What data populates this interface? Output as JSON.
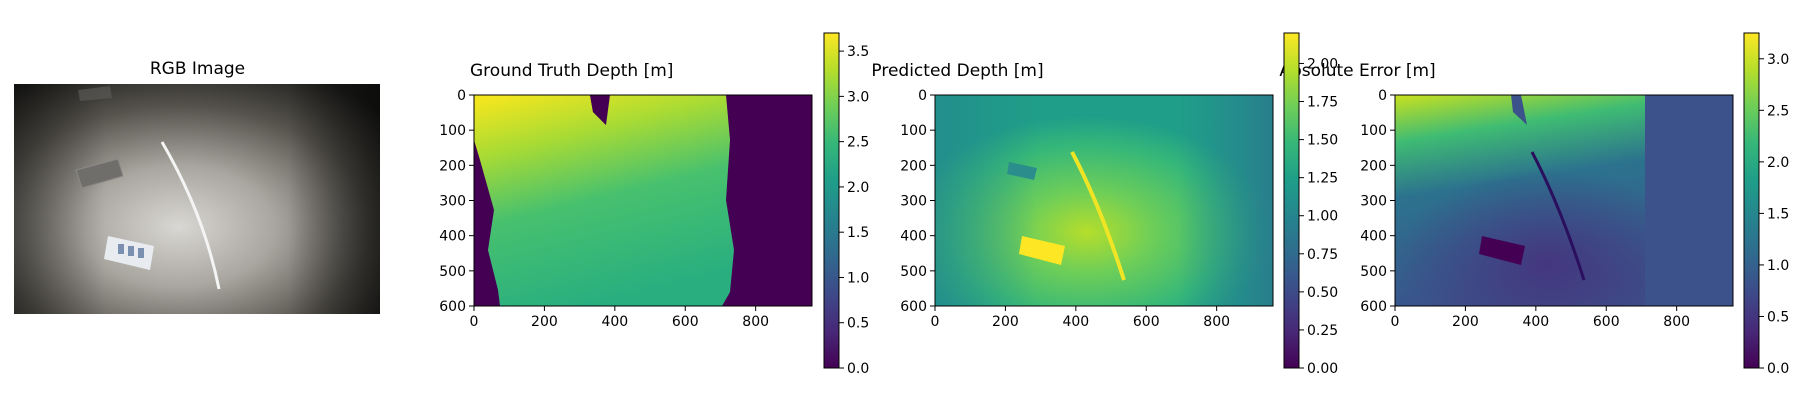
{
  "chart_data": [
    {
      "type": "image",
      "title": "RGB Image"
    },
    {
      "type": "heatmap",
      "title": "Ground Truth Depth [m]",
      "x_ticks": [
        "0",
        "200",
        "400",
        "600",
        "800"
      ],
      "y_ticks": [
        "0",
        "100",
        "200",
        "300",
        "400",
        "500",
        "600"
      ],
      "xlim": [
        0,
        960
      ],
      "ylim": [
        0,
        600
      ],
      "colorbar": {
        "range": [
          0,
          3.7
        ],
        "ticks": [
          "0.0",
          "0.5",
          "1.0",
          "1.5",
          "2.0",
          "2.5",
          "3.0",
          "3.5"
        ],
        "tick_values": [
          0,
          0.5,
          1.0,
          1.5,
          2.0,
          2.5,
          3.0,
          3.5
        ]
      }
    },
    {
      "type": "heatmap",
      "title": "Predicted Depth [m]",
      "x_ticks": [
        "0",
        "200",
        "400",
        "600",
        "800"
      ],
      "y_ticks": [
        "0",
        "100",
        "200",
        "300",
        "400",
        "500",
        "600"
      ],
      "xlim": [
        0,
        960
      ],
      "ylim": [
        0,
        600
      ],
      "colorbar": {
        "range": [
          0,
          2.2
        ],
        "ticks": [
          "0.00",
          "0.25",
          "0.50",
          "0.75",
          "1.00",
          "1.25",
          "1.50",
          "1.75",
          "2.00"
        ],
        "tick_values": [
          0,
          0.25,
          0.5,
          0.75,
          1.0,
          1.25,
          1.5,
          1.75,
          2.0
        ]
      }
    },
    {
      "type": "heatmap",
      "title": "Absolute Error [m]",
      "x_ticks": [
        "0",
        "200",
        "400",
        "600",
        "800"
      ],
      "y_ticks": [
        "0",
        "100",
        "200",
        "300",
        "400",
        "500",
        "600"
      ],
      "xlim": [
        0,
        960
      ],
      "ylim": [
        0,
        600
      ],
      "colorbar": {
        "range": [
          0,
          3.25
        ],
        "ticks": [
          "0.0",
          "0.5",
          "1.0",
          "1.5",
          "2.0",
          "2.5",
          "3.0"
        ],
        "tick_values": [
          0,
          0.5,
          1.0,
          1.5,
          2.0,
          2.5,
          3.0
        ]
      }
    }
  ],
  "colormap": {
    "name": "viridis",
    "stops": [
      "#440154",
      "#482878",
      "#3e4989",
      "#31688e",
      "#26828e",
      "#1f9e89",
      "#35b779",
      "#6ece58",
      "#b5de2b",
      "#fde725"
    ]
  },
  "panel_colors": {
    "rgb_bright": "#d8d6d2",
    "rgb_dark": "#1c1c1a",
    "invalid": "#440154"
  }
}
